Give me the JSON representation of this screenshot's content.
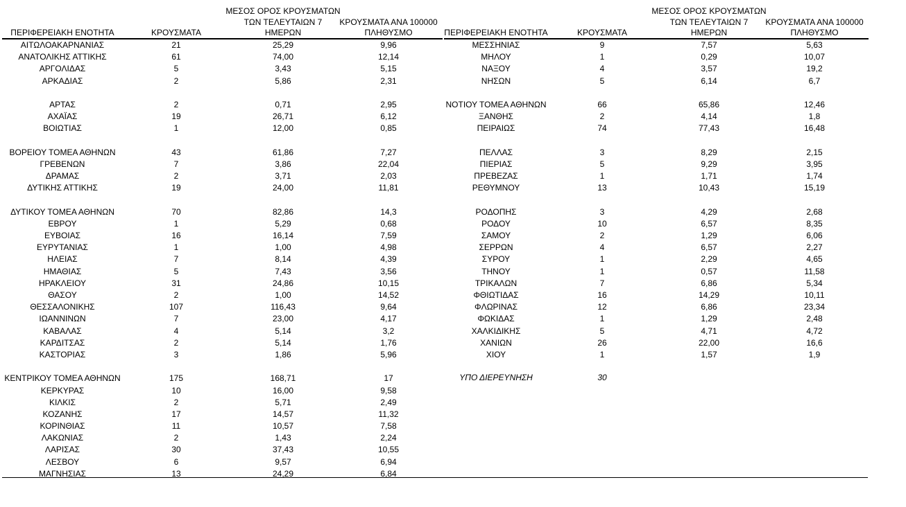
{
  "headers": {
    "region": "ΠΕΡΙΦΕΡΕΙΑΚΗ ΕΝΟΤΗΤΑ",
    "cases": "ΚΡΟΥΣΜΑΤΑ",
    "avg_line1": "ΜΕΣΟΣ ΟΡΟΣ ΚΡΟΥΣΜΑΤΩΝ",
    "avg_line2": "ΤΩΝ ΤΕΛΕΥΤΑΙΩΝ 7",
    "avg_line3": "ΗΜΕΡΩΝ",
    "per100k_line1": "ΚΡΟΥΣΜΑΤΑ ΑΝΑ 100000",
    "per100k_line2": "ΠΛΗΘΥΣΜΟ"
  },
  "left_rows": [
    [
      "ΑΙΤΩΛΟΑΚΑΡΝΑΝΙΑΣ",
      "21",
      "25,29",
      "9,96"
    ],
    [
      "ΑΝΑΤΟΛΙΚΗΣ ΑΤΤΙΚΗΣ",
      "61",
      "74,00",
      "12,14"
    ],
    [
      "ΑΡΓΟΛΙΔΑΣ",
      "5",
      "3,43",
      "5,15"
    ],
    [
      "ΑΡΚΑΔΙΑΣ",
      "2",
      "5,86",
      "2,31"
    ],
    null,
    [
      "ΑΡΤΑΣ",
      "2",
      "0,71",
      "2,95"
    ],
    [
      "ΑΧΑΪΑΣ",
      "19",
      "26,71",
      "6,12"
    ],
    [
      "ΒΟΙΩΤΙΑΣ",
      "1",
      "12,00",
      "0,85"
    ],
    null,
    [
      "ΒΟΡΕΙΟΥ ΤΟΜΕΑ ΑΘΗΝΩΝ",
      "43",
      "61,86",
      "7,27"
    ],
    [
      "ΓΡΕΒΕΝΩΝ",
      "7",
      "3,86",
      "22,04"
    ],
    [
      "ΔΡΑΜΑΣ",
      "2",
      "3,71",
      "2,03"
    ],
    [
      "ΔΥΤΙΚΗΣ ΑΤΤΙΚΗΣ",
      "19",
      "24,00",
      "11,81"
    ],
    null,
    [
      "ΔΥΤΙΚΟΥ ΤΟΜΕΑ ΑΘΗΝΩΝ",
      "70",
      "82,86",
      "14,3"
    ],
    [
      "ΕΒΡΟΥ",
      "1",
      "5,29",
      "0,68"
    ],
    [
      "ΕΥΒΟΙΑΣ",
      "16",
      "16,14",
      "7,59"
    ],
    [
      "ΕΥΡΥΤΑΝΙΑΣ",
      "1",
      "1,00",
      "4,98"
    ],
    [
      "ΗΛΕΙΑΣ",
      "7",
      "8,14",
      "4,39"
    ],
    [
      "ΗΜΑΘΙΑΣ",
      "5",
      "7,43",
      "3,56"
    ],
    [
      "ΗΡΑΚΛΕΙΟΥ",
      "31",
      "24,86",
      "10,15"
    ],
    [
      "ΘΑΣΟΥ",
      "2",
      "1,00",
      "14,52"
    ],
    [
      "ΘΕΣΣΑΛΟΝΙΚΗΣ",
      "107",
      "116,43",
      "9,64"
    ],
    [
      "ΙΩΑΝΝΙΝΩΝ",
      "7",
      "23,00",
      "4,17"
    ],
    [
      "ΚΑΒΑΛΑΣ",
      "4",
      "5,14",
      "3,2"
    ],
    [
      "ΚΑΡΔΙΤΣΑΣ",
      "2",
      "5,14",
      "1,76"
    ],
    [
      "ΚΑΣΤΟΡΙΑΣ",
      "3",
      "1,86",
      "5,96"
    ],
    null,
    [
      "ΚΕΝΤΡΙΚΟΥ ΤΟΜΕΑ ΑΘΗΝΩΝ",
      "175",
      "168,71",
      "17"
    ],
    [
      "ΚΕΡΚΥΡΑΣ",
      "10",
      "16,00",
      "9,58"
    ],
    [
      "ΚΙΛΚΙΣ",
      "2",
      "5,71",
      "2,49"
    ],
    [
      "ΚΟΖΑΝΗΣ",
      "17",
      "14,57",
      "11,32"
    ],
    [
      "ΚΟΡΙΝΘΙΑΣ",
      "11",
      "10,57",
      "7,58"
    ],
    [
      "ΛΑΚΩΝΙΑΣ",
      "2",
      "1,43",
      "2,24"
    ],
    [
      "ΛΑΡΙΣΑΣ",
      "30",
      "37,43",
      "10,55"
    ],
    [
      "ΛΕΣΒΟΥ",
      "6",
      "9,57",
      "6,94"
    ],
    [
      "ΜΑΓΝΗΣΙΑΣ",
      "13",
      "24,29",
      "6,84"
    ]
  ],
  "right_rows": [
    [
      "ΜΕΣΣΗΝΙΑΣ",
      "9",
      "7,57",
      "5,63"
    ],
    [
      "ΜΗΛΟΥ",
      "1",
      "0,29",
      "10,07"
    ],
    [
      "ΝΑΞΟΥ",
      "4",
      "3,57",
      "19,2"
    ],
    [
      "ΝΗΣΩΝ",
      "5",
      "6,14",
      "6,7"
    ],
    null,
    [
      "ΝΟΤΙΟΥ ΤΟΜΕΑ ΑΘΗΝΩΝ",
      "66",
      "65,86",
      "12,46"
    ],
    [
      "ΞΑΝΘΗΣ",
      "2",
      "4,14",
      "1,8"
    ],
    [
      "ΠΕΙΡΑΙΩΣ",
      "74",
      "77,43",
      "16,48"
    ],
    null,
    [
      "ΠΕΛΛΑΣ",
      "3",
      "8,29",
      "2,15"
    ],
    [
      "ΠΙΕΡΙΑΣ",
      "5",
      "9,29",
      "3,95"
    ],
    [
      "ΠΡΕΒΕΖΑΣ",
      "1",
      "1,71",
      "1,74"
    ],
    [
      "ΡΕΘΥΜΝΟΥ",
      "13",
      "10,43",
      "15,19"
    ],
    null,
    [
      "ΡΟΔΟΠΗΣ",
      "3",
      "4,29",
      "2,68"
    ],
    [
      "ΡΟΔΟΥ",
      "10",
      "6,57",
      "8,35"
    ],
    [
      "ΣΑΜΟΥ",
      "2",
      "1,29",
      "6,06"
    ],
    [
      "ΣΕΡΡΩΝ",
      "4",
      "6,57",
      "2,27"
    ],
    [
      "ΣΥΡΟΥ",
      "1",
      "2,29",
      "4,65"
    ],
    [
      "ΤΗΝΟΥ",
      "1",
      "0,57",
      "11,58"
    ],
    [
      "ΤΡΙΚΑΛΩΝ",
      "7",
      "6,86",
      "5,34"
    ],
    [
      "ΦΘΙΩΤΙΔΑΣ",
      "16",
      "14,29",
      "10,11"
    ],
    [
      "ΦΛΩΡΙΝΑΣ",
      "12",
      "6,86",
      "23,34"
    ],
    [
      "ΦΩΚΙΔΑΣ",
      "1",
      "1,29",
      "2,48"
    ],
    [
      "ΧΑΛΚΙΔΙΚΗΣ",
      "5",
      "4,71",
      "4,72"
    ],
    [
      "ΧΑΝΙΩΝ",
      "26",
      "22,00",
      "16,6"
    ],
    [
      "ΧΙΟΥ",
      "1",
      "1,57",
      "1,9"
    ],
    null
  ],
  "under_investigation": {
    "label": "ΥΠΟ ΔΙΕΡΕΥΝΗΣΗ",
    "cases": "30"
  }
}
